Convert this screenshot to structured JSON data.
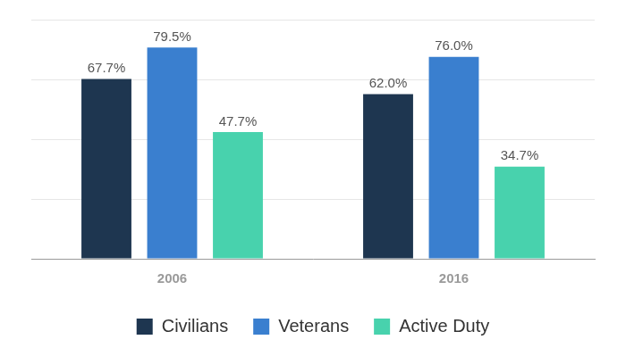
{
  "chart_data": {
    "type": "bar",
    "categories": [
      "2006",
      "2016"
    ],
    "series": [
      {
        "name": "Civilians",
        "color": "#1e3650",
        "values": [
          67.7,
          62.0
        ],
        "value_labels": [
          "67.7%",
          "62.0%"
        ]
      },
      {
        "name": "Veterans",
        "color": "#3a7fcf",
        "values": [
          79.5,
          76.0
        ],
        "value_labels": [
          "79.5%",
          "76.0%"
        ]
      },
      {
        "name": "Active Duty",
        "color": "#48d2ad",
        "values": [
          47.7,
          34.7
        ],
        "value_labels": [
          "47.7%",
          "34.7%"
        ]
      }
    ],
    "ylim": [
      0,
      90
    ],
    "yticks": [
      0,
      22.5,
      45,
      67.5,
      90
    ],
    "grid": true,
    "legend": "bottom",
    "data_labels": true,
    "tick_labels": "x"
  }
}
